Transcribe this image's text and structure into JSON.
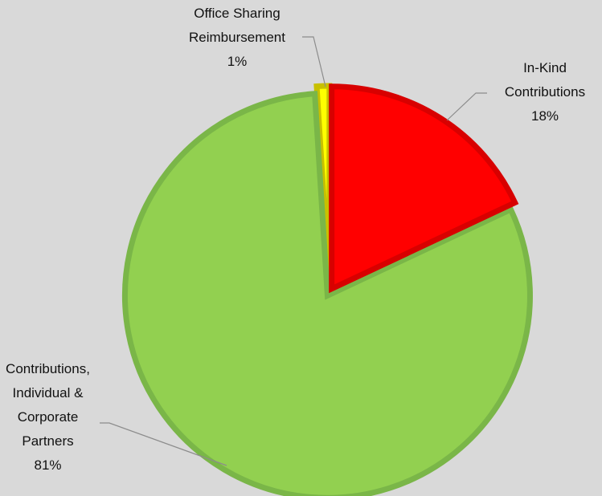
{
  "chart_data": {
    "type": "pie",
    "categories": [
      "In-Kind Contributions",
      "Contributions, Individual & Corporate Partners",
      "Office Sharing Reimbursement"
    ],
    "values": [
      18,
      81,
      1
    ],
    "value_labels": [
      "18%",
      "81%",
      "1%"
    ],
    "colors": [
      "#ff0000",
      "#92d050",
      "#ffff00"
    ]
  }
}
